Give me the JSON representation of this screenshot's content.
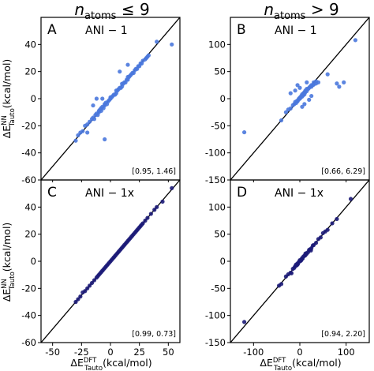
{
  "figure": {
    "col_title_left": {
      "main": "n",
      "sub": "atoms",
      "rel": " ≤ 9"
    },
    "col_title_right": {
      "main": "n",
      "sub": "atoms",
      "rel": " > 9"
    },
    "ylabel": {
      "delta": "ΔE",
      "sup": "NN",
      "sub": "Tauto",
      "unit": "(kcal/mol)"
    },
    "xlabel": {
      "delta": "ΔE",
      "sup": "DFT",
      "sub": "Tauto",
      "unit": "(kcal/mol)"
    },
    "colors": {
      "ani1": "#4a78dd",
      "ani1x": "#1c1b78",
      "diagonal": "#000000"
    }
  },
  "chart_data": [
    {
      "type": "scatter",
      "panel": "A",
      "model": "ANI − 1",
      "stats": "[0.95, 1.46]",
      "xlim": [
        -60,
        60
      ],
      "ylim": [
        -60,
        60
      ],
      "xticks": [
        -50,
        -25,
        0,
        25,
        50
      ],
      "yticks": [
        -60,
        -40,
        -20,
        0,
        20,
        40
      ],
      "x": [
        -30,
        -28,
        -26,
        -24,
        -22,
        -20,
        -18,
        -16,
        -15,
        -14,
        -13,
        -12,
        -11,
        -10,
        -10,
        -9,
        -8,
        -8,
        -7,
        -6,
        -5,
        -5,
        -4,
        -3,
        -2,
        -1,
        0,
        0,
        1,
        2,
        3,
        4,
        5,
        5,
        6,
        7,
        8,
        9,
        10,
        10,
        11,
        12,
        13,
        14,
        15,
        15,
        16,
        17,
        18,
        19,
        20,
        21,
        22,
        23,
        24,
        25,
        26,
        27,
        28,
        30,
        31,
        32,
        33,
        -20,
        -5,
        8,
        15,
        -12,
        40,
        53,
        -15,
        -7
      ],
      "y": [
        -31,
        -27,
        -25,
        -24,
        -20,
        -19,
        -17,
        -15,
        -14,
        -15,
        -12,
        -11,
        -12,
        -10,
        -9,
        -8,
        -9,
        -7,
        -6,
        -7,
        -5,
        -4,
        -3,
        -4,
        -2,
        -1,
        0,
        1,
        1,
        2,
        3,
        3,
        4,
        6,
        6,
        7,
        8,
        8,
        9,
        11,
        11,
        12,
        12,
        14,
        14,
        16,
        16,
        17,
        18,
        19,
        19,
        21,
        22,
        22,
        24,
        24,
        26,
        26,
        28,
        29,
        30,
        31,
        32,
        -25,
        -30,
        20,
        25,
        0,
        42,
        40,
        -5,
        0
      ]
    },
    {
      "type": "scatter",
      "panel": "B",
      "model": "ANI − 1",
      "stats": "[0.66, 6.29]",
      "xlim": [
        -150,
        150
      ],
      "ylim": [
        -150,
        150
      ],
      "xticks": [
        -100,
        0,
        100
      ],
      "yticks": [
        -150,
        -100,
        -50,
        0,
        50,
        100
      ],
      "x": [
        -120,
        -40,
        -30,
        -25,
        -20,
        -15,
        -12,
        -10,
        -8,
        -6,
        -5,
        -3,
        -2,
        0,
        0,
        2,
        3,
        5,
        5,
        7,
        8,
        10,
        10,
        12,
        12,
        15,
        15,
        18,
        20,
        22,
        25,
        25,
        28,
        30,
        30,
        35,
        35,
        40,
        60,
        80,
        85,
        95,
        120,
        -20,
        -10,
        0,
        10,
        15,
        5,
        -5,
        20,
        25
      ],
      "y": [
        -62,
        -40,
        -25,
        -20,
        -18,
        -12,
        -10,
        -6,
        -8,
        -4,
        -5,
        -2,
        0,
        0,
        2,
        2,
        5,
        4,
        8,
        6,
        10,
        8,
        12,
        12,
        15,
        14,
        18,
        18,
        20,
        22,
        22,
        25,
        25,
        26,
        30,
        28,
        32,
        30,
        45,
        28,
        22,
        30,
        108,
        10,
        15,
        20,
        -10,
        30,
        -15,
        25,
        -2,
        5
      ]
    },
    {
      "type": "scatter",
      "panel": "C",
      "model": "ANI − 1x",
      "stats": "[0.99, 0.73]",
      "xlim": [
        -60,
        60
      ],
      "ylim": [
        -60,
        60
      ],
      "xticks": [
        -50,
        -25,
        0,
        25,
        50
      ],
      "yticks": [
        -60,
        -40,
        -20,
        0,
        20,
        40
      ],
      "x": [
        -30,
        -28,
        -26,
        -24,
        -22,
        -20,
        -18,
        -16,
        -14,
        -12,
        -11,
        -10,
        -9,
        -8,
        -7,
        -6,
        -5,
        -4,
        -3,
        -2,
        -1,
        0,
        1,
        2,
        3,
        4,
        5,
        6,
        7,
        8,
        9,
        10,
        11,
        12,
        13,
        14,
        15,
        16,
        17,
        18,
        19,
        20,
        21,
        22,
        23,
        24,
        25,
        26,
        27,
        28,
        30,
        32,
        35,
        38,
        40,
        45,
        53
      ],
      "y": [
        -30,
        -28,
        -26,
        -23,
        -22,
        -20,
        -18,
        -16,
        -14,
        -12,
        -11,
        -10,
        -9,
        -8,
        -7,
        -6,
        -5,
        -4,
        -3,
        -2,
        -1,
        0,
        1,
        2,
        3,
        4,
        5,
        6,
        7,
        8,
        9,
        10,
        11,
        12,
        13,
        14,
        15,
        16,
        17,
        18,
        19,
        20,
        21,
        22,
        23,
        24,
        25,
        26,
        27,
        28,
        30,
        32,
        35,
        38,
        40,
        44,
        54
      ]
    },
    {
      "type": "scatter",
      "panel": "D",
      "model": "ANI − 1x",
      "stats": "[0.94, 2.20]",
      "xlim": [
        -150,
        150
      ],
      "ylim": [
        -150,
        150
      ],
      "xticks": [
        -100,
        0,
        100
      ],
      "yticks": [
        -150,
        -100,
        -50,
        0,
        50,
        100
      ],
      "x": [
        -120,
        -45,
        -40,
        -30,
        -25,
        -20,
        -15,
        -12,
        -10,
        -8,
        -6,
        -5,
        -4,
        -2,
        0,
        0,
        2,
        4,
        5,
        6,
        8,
        10,
        12,
        14,
        15,
        18,
        20,
        22,
        25,
        28,
        30,
        35,
        40,
        45,
        50,
        55,
        60,
        70,
        80,
        110,
        -18,
        -8,
        3,
        12,
        24
      ],
      "y": [
        -112,
        -45,
        -42,
        -28,
        -24,
        -21,
        -14,
        -12,
        -9,
        -8,
        -7,
        -4,
        -5,
        -1,
        0,
        2,
        1,
        4,
        6,
        5,
        9,
        10,
        11,
        15,
        14,
        17,
        21,
        22,
        24,
        29,
        30,
        34,
        41,
        44,
        52,
        55,
        58,
        70,
        78,
        115,
        -22,
        -6,
        2,
        14,
        20
      ]
    }
  ]
}
